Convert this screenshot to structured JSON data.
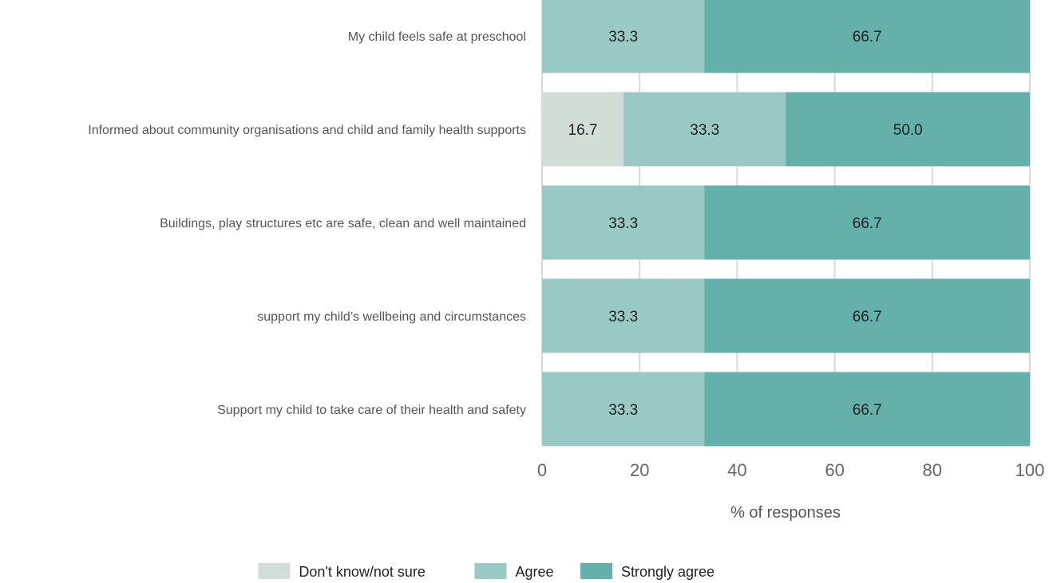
{
  "chart_data": {
    "type": "bar",
    "orientation": "horizontal",
    "stacked": true,
    "categories": [
      "My child feels safe at preschool",
      "Informed about community organisations and child and family health supports",
      "Buildings, play structures etc are safe, clean and well maintained",
      "support my child’s wellbeing and circumstances",
      "Support my child to take care of their health and safety"
    ],
    "series": [
      {
        "name": "Don't know/not sure",
        "color": "#d3ddd8",
        "values": [
          0,
          16.7,
          0,
          0,
          0
        ]
      },
      {
        "name": "Agree",
        "color": "#98c9c3",
        "values": [
          33.3,
          33.3,
          33.3,
          33.3,
          33.3
        ]
      },
      {
        "name": "Strongly agree",
        "color": "#64b0ab",
        "values": [
          66.7,
          50.0,
          66.7,
          66.7,
          66.7
        ]
      }
    ],
    "xlabel": "% of responses",
    "xlim": [
      0,
      100
    ],
    "xticks": [
      "0",
      "20",
      "40",
      "60",
      "80",
      "100"
    ],
    "grid": true,
    "legend_position": "bottom"
  }
}
